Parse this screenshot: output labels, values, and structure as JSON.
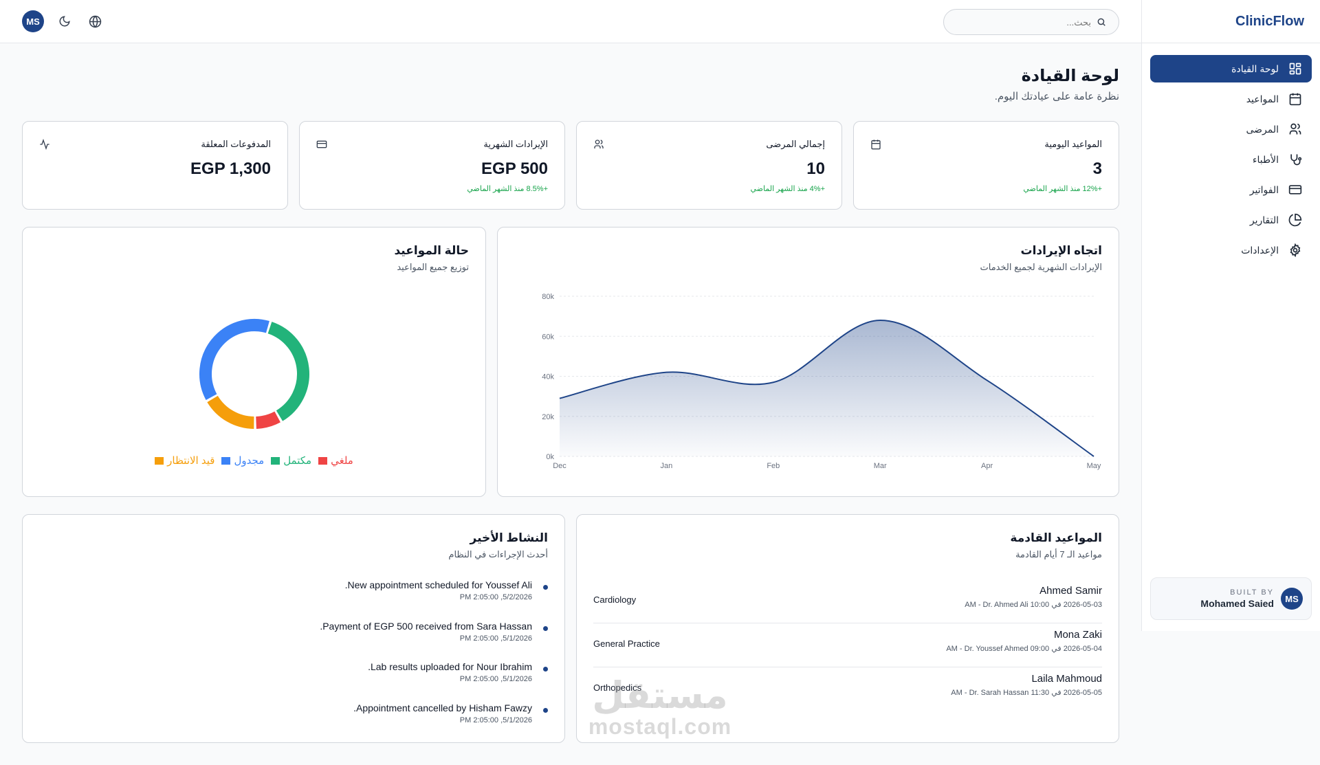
{
  "brand": "ClinicFlow",
  "search": {
    "placeholder": "بحث..."
  },
  "user_initials": "MS",
  "nav": [
    {
      "label": "لوحة القيادة",
      "icon": "dashboard-icon",
      "active": true
    },
    {
      "label": "المواعيد",
      "icon": "calendar-icon"
    },
    {
      "label": "المرضى",
      "icon": "users-icon"
    },
    {
      "label": "الأطباء",
      "icon": "stethoscope-icon"
    },
    {
      "label": "الفواتير",
      "icon": "credit-card-icon"
    },
    {
      "label": "التقارير",
      "icon": "pie-chart-icon"
    },
    {
      "label": "الإعدادات",
      "icon": "gear-icon"
    }
  ],
  "built_by": {
    "label": "BUILT BY",
    "name": "Mohamed Saied",
    "initials": "MS"
  },
  "page": {
    "title": "لوحة القيادة",
    "subtitle": "نظرة عامة على عيادتك اليوم."
  },
  "stats": [
    {
      "label": "المواعيد اليومية",
      "value": "3",
      "trend": "+12% منذ الشهر الماضي",
      "icon": "calendar-icon"
    },
    {
      "label": "إجمالي المرضى",
      "value": "10",
      "trend": "+4% منذ الشهر الماضي",
      "icon": "users-icon"
    },
    {
      "label": "الإيرادات الشهرية",
      "value": "EGP 500",
      "trend": "+8.5% منذ الشهر الماضي",
      "icon": "credit-card-icon"
    },
    {
      "label": "المدفوعات المعلقة",
      "value": "EGP 1,300",
      "trend": "",
      "icon": "activity-icon"
    }
  ],
  "revenue": {
    "title": "اتجاه الإيرادات",
    "subtitle": "الإيرادات الشهرية لجميع الخدمات"
  },
  "status": {
    "title": "حالة المواعيد",
    "subtitle": "توزيع جميع المواعيد"
  },
  "chart_data": [
    {
      "type": "area",
      "title": "اتجاه الإيرادات",
      "x": [
        "Dec",
        "Jan",
        "Feb",
        "Mar",
        "Apr",
        "May"
      ],
      "y_ticks": [
        "0k",
        "20k",
        "40k",
        "60k",
        "80k"
      ],
      "values": [
        29000,
        42000,
        37000,
        68000,
        38000,
        0
      ],
      "ylim": [
        0,
        80000
      ],
      "grid": true,
      "color": "#1e4488"
    },
    {
      "type": "pie",
      "title": "حالة المواعيد",
      "donut": true,
      "slices": [
        {
          "name": "مكتمل",
          "value": 37,
          "color": "#22b37a"
        },
        {
          "name": "ملغي",
          "value": 8,
          "color": "#ef4444"
        },
        {
          "name": "قيد الانتظار",
          "value": 17,
          "color": "#f59e0b"
        },
        {
          "name": "مجدول",
          "value": 38,
          "color": "#3b82f6"
        }
      ],
      "legend": [
        "ملغي",
        "مكتمل",
        "مجدول",
        "قيد الانتظار"
      ]
    }
  ],
  "upcoming": {
    "title": "المواعيد القادمة",
    "subtitle": "مواعيد الـ 7 أيام القادمة",
    "items": [
      {
        "name": "Ahmed Samir",
        "detail": "2026-05-03 في 10:00 AM - Dr. Ahmed Ali",
        "specialty": "Cardiology"
      },
      {
        "name": "Mona Zaki",
        "detail": "2026-05-04 في 09:00 AM - Dr. Youssef Ahmed",
        "specialty": "General Practice"
      },
      {
        "name": "Laila Mahmoud",
        "detail": "2026-05-05 في 11:30 AM - Dr. Sarah Hassan",
        "specialty": "Orthopedics"
      }
    ]
  },
  "activity": {
    "title": "النشاط الأخير",
    "subtitle": "أحدث الإجراءات في النظام",
    "items": [
      {
        "text": "New appointment scheduled for Youssef Ali.",
        "time": "5/2/2026, 2:05:00 PM"
      },
      {
        "text": "Payment of EGP 500 received from Sara Hassan.",
        "time": "5/1/2026, 2:05:00 PM"
      },
      {
        "text": "Lab results uploaded for Nour Ibrahim.",
        "time": "5/1/2026, 2:05:00 PM"
      },
      {
        "text": "Appointment cancelled by Hisham Fawzy.",
        "time": "5/1/2026, 2:05:00 PM"
      }
    ]
  },
  "watermark": {
    "arabic": "مستقل",
    "latin": "mostaql.com"
  }
}
